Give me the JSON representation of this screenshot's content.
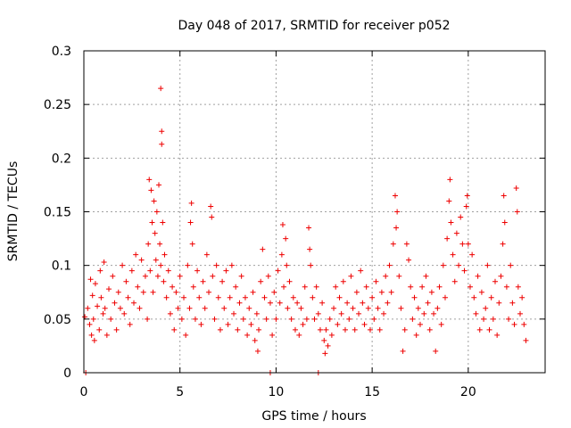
{
  "chart_data": {
    "type": "scatter",
    "title": "Day 048 of 2017, SRMTID for receiver p052",
    "xlabel": "GPS time / hours",
    "ylabel": "SRMTID / TECUs",
    "xlim": [
      0,
      24
    ],
    "ylim": [
      0,
      0.3
    ],
    "xticks": [
      0,
      5,
      10,
      15,
      20
    ],
    "xtick_labels": [
      "0",
      "5",
      "10",
      "15",
      "20"
    ],
    "yticks": [
      0,
      0.05,
      0.1,
      0.15,
      0.2,
      0.25,
      0.3
    ],
    "ytick_labels": [
      "0",
      "0.05",
      "0.1",
      "0.15",
      "0.2",
      "0.25",
      "0.3"
    ],
    "grid": true,
    "marker": "plus",
    "color": "#ee0000",
    "series": [
      {
        "name": "SRMTID",
        "points": [
          [
            0.1,
            0.0
          ],
          [
            9.7,
            0.0
          ],
          [
            12.2,
            0.0
          ],
          [
            0.05,
            0.052
          ],
          [
            0.2,
            0.06
          ],
          [
            0.3,
            0.045
          ],
          [
            0.35,
            0.087
          ],
          [
            0.4,
            0.035
          ],
          [
            0.45,
            0.072
          ],
          [
            0.5,
            0.05
          ],
          [
            0.55,
            0.03
          ],
          [
            0.6,
            0.083
          ],
          [
            0.7,
            0.062
          ],
          [
            0.8,
            0.04
          ],
          [
            0.85,
            0.095
          ],
          [
            0.9,
            0.07
          ],
          [
            1.0,
            0.055
          ],
          [
            1.05,
            0.103
          ],
          [
            1.1,
            0.06
          ],
          [
            1.2,
            0.035
          ],
          [
            1.3,
            0.078
          ],
          [
            1.4,
            0.05
          ],
          [
            1.5,
            0.09
          ],
          [
            1.6,
            0.065
          ],
          [
            1.7,
            0.04
          ],
          [
            1.8,
            0.075
          ],
          [
            1.9,
            0.06
          ],
          [
            2.0,
            0.1
          ],
          [
            2.1,
            0.055
          ],
          [
            2.2,
            0.085
          ],
          [
            2.3,
            0.07
          ],
          [
            2.4,
            0.045
          ],
          [
            2.5,
            0.095
          ],
          [
            2.6,
            0.065
          ],
          [
            2.7,
            0.11
          ],
          [
            2.8,
            0.08
          ],
          [
            2.9,
            0.06
          ],
          [
            3.0,
            0.105
          ],
          [
            3.1,
            0.075
          ],
          [
            3.2,
            0.09
          ],
          [
            3.3,
            0.05
          ],
          [
            3.35,
            0.12
          ],
          [
            3.4,
            0.18
          ],
          [
            3.45,
            0.095
          ],
          [
            3.5,
            0.17
          ],
          [
            3.55,
            0.14
          ],
          [
            3.6,
            0.075
          ],
          [
            3.65,
            0.16
          ],
          [
            3.7,
            0.13
          ],
          [
            3.75,
            0.105
          ],
          [
            3.8,
            0.15
          ],
          [
            3.85,
            0.09
          ],
          [
            3.9,
            0.175
          ],
          [
            3.95,
            0.12
          ],
          [
            4.0,
            0.1
          ],
          [
            4.0,
            0.265
          ],
          [
            4.05,
            0.225
          ],
          [
            4.05,
            0.213
          ],
          [
            4.1,
            0.14
          ],
          [
            4.15,
            0.085
          ],
          [
            4.2,
            0.11
          ],
          [
            4.3,
            0.07
          ],
          [
            4.4,
            0.095
          ],
          [
            4.5,
            0.055
          ],
          [
            4.6,
            0.08
          ],
          [
            4.7,
            0.04
          ],
          [
            4.8,
            0.075
          ],
          [
            4.9,
            0.06
          ],
          [
            5.0,
            0.09
          ],
          [
            5.1,
            0.05
          ],
          [
            5.2,
            0.07
          ],
          [
            5.3,
            0.035
          ],
          [
            5.4,
            0.1
          ],
          [
            5.5,
            0.06
          ],
          [
            5.55,
            0.14
          ],
          [
            5.6,
            0.158
          ],
          [
            5.65,
            0.12
          ],
          [
            5.7,
            0.08
          ],
          [
            5.8,
            0.05
          ],
          [
            5.9,
            0.095
          ],
          [
            6.0,
            0.07
          ],
          [
            6.1,
            0.045
          ],
          [
            6.2,
            0.085
          ],
          [
            6.3,
            0.06
          ],
          [
            6.4,
            0.11
          ],
          [
            6.5,
            0.075
          ],
          [
            6.6,
            0.155
          ],
          [
            6.65,
            0.145
          ],
          [
            6.7,
            0.09
          ],
          [
            6.8,
            0.05
          ],
          [
            6.9,
            0.1
          ],
          [
            7.0,
            0.07
          ],
          [
            7.1,
            0.04
          ],
          [
            7.2,
            0.085
          ],
          [
            7.3,
            0.06
          ],
          [
            7.4,
            0.095
          ],
          [
            7.5,
            0.045
          ],
          [
            7.6,
            0.07
          ],
          [
            7.7,
            0.1
          ],
          [
            7.8,
            0.055
          ],
          [
            7.9,
            0.08
          ],
          [
            8.0,
            0.04
          ],
          [
            8.1,
            0.065
          ],
          [
            8.2,
            0.09
          ],
          [
            8.3,
            0.05
          ],
          [
            8.4,
            0.07
          ],
          [
            8.5,
            0.035
          ],
          [
            8.6,
            0.06
          ],
          [
            8.7,
            0.045
          ],
          [
            8.8,
            0.075
          ],
          [
            8.9,
            0.03
          ],
          [
            9.0,
            0.055
          ],
          [
            9.05,
            0.02
          ],
          [
            9.1,
            0.04
          ],
          [
            9.2,
            0.085
          ],
          [
            9.3,
            0.115
          ],
          [
            9.4,
            0.07
          ],
          [
            9.5,
            0.05
          ],
          [
            9.6,
            0.09
          ],
          [
            9.7,
            0.065
          ],
          [
            9.8,
            0.035
          ],
          [
            9.9,
            0.075
          ],
          [
            10.0,
            0.05
          ],
          [
            10.1,
            0.095
          ],
          [
            10.2,
            0.065
          ],
          [
            10.3,
            0.11
          ],
          [
            10.35,
            0.138
          ],
          [
            10.4,
            0.08
          ],
          [
            10.5,
            0.125
          ],
          [
            10.55,
            0.1
          ],
          [
            10.6,
            0.06
          ],
          [
            10.7,
            0.085
          ],
          [
            10.8,
            0.05
          ],
          [
            10.9,
            0.07
          ],
          [
            11.0,
            0.04
          ],
          [
            11.1,
            0.065
          ],
          [
            11.2,
            0.035
          ],
          [
            11.3,
            0.06
          ],
          [
            11.4,
            0.045
          ],
          [
            11.5,
            0.08
          ],
          [
            11.6,
            0.05
          ],
          [
            11.7,
            0.135
          ],
          [
            11.75,
            0.115
          ],
          [
            11.8,
            0.1
          ],
          [
            11.9,
            0.07
          ],
          [
            12.0,
            0.05
          ],
          [
            12.1,
            0.08
          ],
          [
            12.2,
            0.055
          ],
          [
            12.3,
            0.04
          ],
          [
            12.4,
            0.065
          ],
          [
            12.5,
            0.03
          ],
          [
            12.55,
            0.018
          ],
          [
            12.6,
            0.04
          ],
          [
            12.7,
            0.025
          ],
          [
            12.8,
            0.05
          ],
          [
            12.9,
            0.035
          ],
          [
            13.0,
            0.06
          ],
          [
            13.1,
            0.08
          ],
          [
            13.2,
            0.045
          ],
          [
            13.3,
            0.07
          ],
          [
            13.4,
            0.055
          ],
          [
            13.5,
            0.085
          ],
          [
            13.6,
            0.04
          ],
          [
            13.7,
            0.065
          ],
          [
            13.8,
            0.05
          ],
          [
            13.9,
            0.09
          ],
          [
            14.0,
            0.06
          ],
          [
            14.1,
            0.04
          ],
          [
            14.2,
            0.075
          ],
          [
            14.3,
            0.055
          ],
          [
            14.4,
            0.095
          ],
          [
            14.5,
            0.065
          ],
          [
            14.6,
            0.045
          ],
          [
            14.7,
            0.08
          ],
          [
            14.8,
            0.06
          ],
          [
            14.9,
            0.04
          ],
          [
            15.0,
            0.07
          ],
          [
            15.1,
            0.05
          ],
          [
            15.2,
            0.085
          ],
          [
            15.3,
            0.06
          ],
          [
            15.4,
            0.04
          ],
          [
            15.5,
            0.075
          ],
          [
            15.6,
            0.055
          ],
          [
            15.7,
            0.09
          ],
          [
            15.8,
            0.065
          ],
          [
            15.9,
            0.1
          ],
          [
            16.0,
            0.075
          ],
          [
            16.1,
            0.12
          ],
          [
            16.2,
            0.165
          ],
          [
            16.25,
            0.135
          ],
          [
            16.3,
            0.15
          ],
          [
            16.4,
            0.09
          ],
          [
            16.5,
            0.06
          ],
          [
            16.6,
            0.02
          ],
          [
            16.7,
            0.04
          ],
          [
            16.8,
            0.12
          ],
          [
            16.9,
            0.105
          ],
          [
            17.0,
            0.08
          ],
          [
            17.1,
            0.05
          ],
          [
            17.2,
            0.07
          ],
          [
            17.3,
            0.035
          ],
          [
            17.4,
            0.06
          ],
          [
            17.5,
            0.045
          ],
          [
            17.6,
            0.08
          ],
          [
            17.7,
            0.055
          ],
          [
            17.8,
            0.09
          ],
          [
            17.9,
            0.065
          ],
          [
            18.0,
            0.04
          ],
          [
            18.1,
            0.075
          ],
          [
            18.2,
            0.055
          ],
          [
            18.3,
            0.02
          ],
          [
            18.4,
            0.06
          ],
          [
            18.5,
            0.08
          ],
          [
            18.6,
            0.045
          ],
          [
            18.7,
            0.1
          ],
          [
            18.8,
            0.07
          ],
          [
            18.9,
            0.125
          ],
          [
            19.0,
            0.16
          ],
          [
            19.05,
            0.18
          ],
          [
            19.1,
            0.14
          ],
          [
            19.2,
            0.11
          ],
          [
            19.3,
            0.085
          ],
          [
            19.4,
            0.13
          ],
          [
            19.5,
            0.1
          ],
          [
            19.6,
            0.145
          ],
          [
            19.7,
            0.12
          ],
          [
            19.8,
            0.095
          ],
          [
            19.9,
            0.155
          ],
          [
            19.95,
            0.165
          ],
          [
            20.0,
            0.12
          ],
          [
            20.1,
            0.08
          ],
          [
            20.2,
            0.11
          ],
          [
            20.3,
            0.07
          ],
          [
            20.4,
            0.055
          ],
          [
            20.5,
            0.09
          ],
          [
            20.6,
            0.04
          ],
          [
            20.7,
            0.075
          ],
          [
            20.8,
            0.05
          ],
          [
            20.9,
            0.06
          ],
          [
            21.0,
            0.1
          ],
          [
            21.1,
            0.04
          ],
          [
            21.2,
            0.07
          ],
          [
            21.3,
            0.05
          ],
          [
            21.4,
            0.085
          ],
          [
            21.5,
            0.035
          ],
          [
            21.6,
            0.065
          ],
          [
            21.7,
            0.09
          ],
          [
            21.8,
            0.12
          ],
          [
            21.85,
            0.165
          ],
          [
            21.9,
            0.14
          ],
          [
            22.0,
            0.08
          ],
          [
            22.1,
            0.05
          ],
          [
            22.2,
            0.1
          ],
          [
            22.3,
            0.065
          ],
          [
            22.4,
            0.045
          ],
          [
            22.5,
            0.172
          ],
          [
            22.55,
            0.15
          ],
          [
            22.6,
            0.08
          ],
          [
            22.7,
            0.055
          ],
          [
            22.8,
            0.07
          ],
          [
            22.9,
            0.045
          ],
          [
            23.0,
            0.03
          ]
        ]
      }
    ]
  }
}
